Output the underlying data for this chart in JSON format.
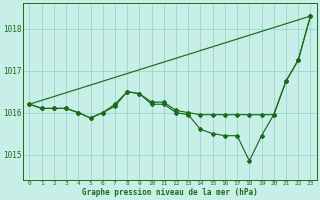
{
  "title": "Graphe pression niveau de la mer (hPa)",
  "bg_color": "#c8eee8",
  "line_color": "#1a6b1a",
  "grid_color": "#a0d8d0",
  "xlim": [
    -0.5,
    23.5
  ],
  "ylim": [
    1014.4,
    1018.6
  ],
  "yticks": [
    1015,
    1016,
    1017,
    1018
  ],
  "xticks": [
    0,
    1,
    2,
    3,
    4,
    5,
    6,
    7,
    8,
    9,
    10,
    11,
    12,
    13,
    14,
    15,
    16,
    17,
    18,
    19,
    20,
    21,
    22,
    23
  ],
  "series1_x": [
    0,
    1,
    2,
    3,
    4,
    5,
    6,
    7,
    8,
    9,
    10,
    11,
    12,
    13,
    14,
    15,
    16,
    17,
    18,
    19,
    20,
    21,
    22,
    23
  ],
  "series1_y": [
    1016.2,
    1016.1,
    1016.1,
    1016.1,
    1016.0,
    1015.87,
    1016.0,
    1016.2,
    1016.5,
    1016.45,
    1016.25,
    1016.25,
    1016.05,
    1016.0,
    1015.95,
    1015.95,
    1015.95,
    1015.95,
    1015.95,
    1015.95,
    1015.95,
    1016.75,
    1017.25,
    1018.3
  ],
  "series2_x": [
    0,
    1,
    2,
    3,
    4,
    5,
    6,
    7,
    8,
    9,
    10,
    11,
    12,
    13,
    14,
    15,
    16,
    17,
    18,
    19,
    20,
    21,
    22,
    23
  ],
  "series2_y": [
    1016.2,
    1016.1,
    1016.1,
    1016.1,
    1016.0,
    1015.87,
    1016.0,
    1016.15,
    1016.5,
    1016.45,
    1016.2,
    1016.2,
    1016.0,
    1015.95,
    1015.6,
    1015.5,
    1015.45,
    1015.45,
    1014.85,
    1015.45,
    1015.95,
    1016.75,
    1017.25,
    1018.3
  ],
  "series3_x": [
    0,
    23
  ],
  "series3_y": [
    1016.2,
    1018.3
  ]
}
